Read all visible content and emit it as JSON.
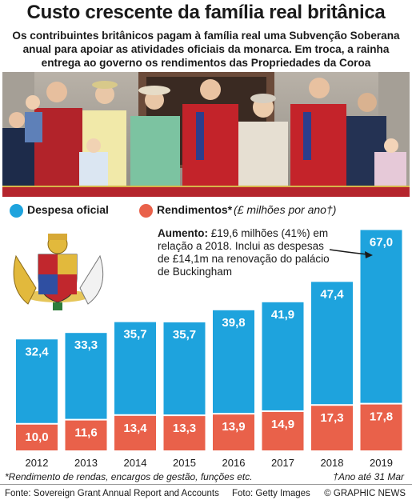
{
  "header": {
    "title": "Custo crescente da família real britânica",
    "subtitle": "Os contribuintes britânicos pagam à família real uma Subvenção Soberana anual para apoiar as atividades oficiais da monarca. Em troca, a rainha entrega ao governo os rendimentos das Propriedades da Coroa"
  },
  "legend": {
    "official": "Despesa oficial",
    "income": "Rendimentos*",
    "unit": "(£ milhões por ano†)"
  },
  "annotation": {
    "bold": "Aumento:",
    "text": " £19,6 milhões (41%) em relação a 2018. Inclui as despesas de £14,1m na renovação do palácio de Buckingham"
  },
  "chart_data": {
    "type": "bar",
    "categories": [
      "2012",
      "2013",
      "2014",
      "2015",
      "2016",
      "2017",
      "2018",
      "2019"
    ],
    "series": [
      {
        "name": "Despesa oficial",
        "values": [
          32.4,
          33.3,
          35.7,
          35.7,
          39.8,
          41.9,
          47.4,
          67.0
        ],
        "labels": [
          "32,4",
          "33,3",
          "35,7",
          "35,7",
          "39,8",
          "41,9",
          "47,4",
          "67,0"
        ],
        "color": "#1ea3dd"
      },
      {
        "name": "Rendimentos*",
        "values": [
          10.0,
          11.6,
          13.4,
          13.3,
          13.9,
          14.9,
          17.3,
          17.8
        ],
        "labels": [
          "10,0",
          "11,6",
          "13,4",
          "13,3",
          "13,9",
          "14,9",
          "17,3",
          "17,8"
        ],
        "color": "#e9614a"
      }
    ],
    "ylabel": "£ milhões por ano",
    "legend_position": "top-left",
    "grid": false
  },
  "footnotes": {
    "left": "*Rendimento de rendas, encargos de gestão, funções etc.",
    "right": "†Ano até 31 Mar"
  },
  "footer": {
    "source": "Fonte: Sovereign Grant Annual Report and Accounts",
    "photo": "Foto: Getty Images",
    "copyright": "© GRAPHIC NEWS"
  },
  "colors": {
    "official": "#1ea3dd",
    "income": "#e9614a",
    "photo_banner": "#b5252d"
  }
}
